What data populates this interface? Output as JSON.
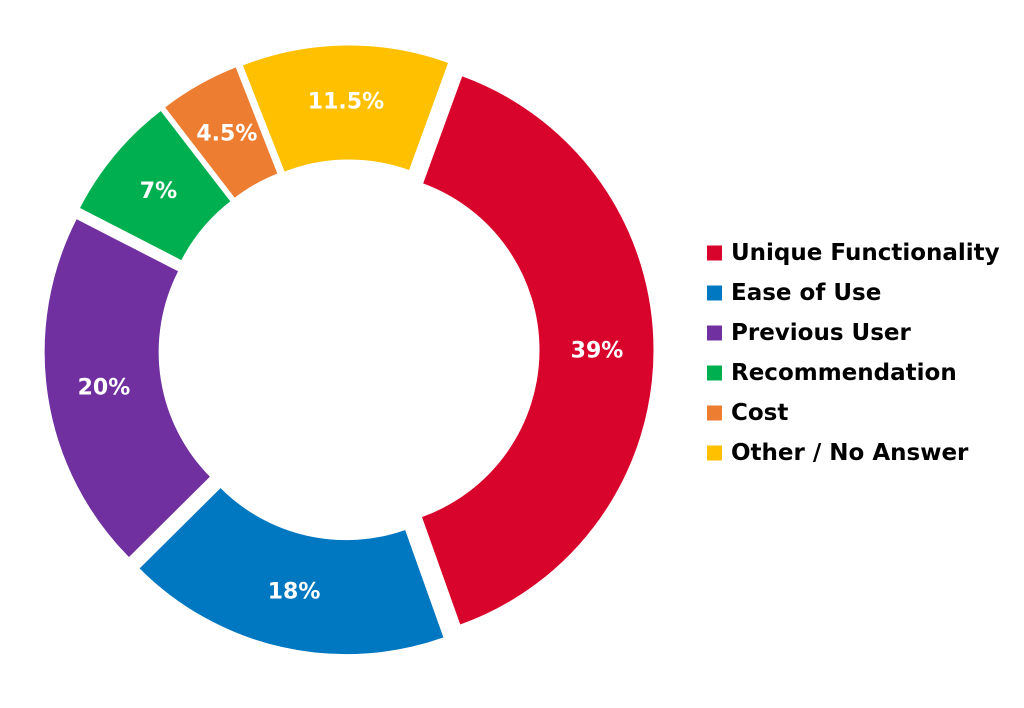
{
  "chart_data": {
    "type": "pie",
    "variant": "donut",
    "title": "",
    "categories": [
      "Unique Functionality",
      "Ease of Use",
      "Previous User",
      "Recommendation",
      "Cost",
      "Other / No Answer"
    ],
    "values": [
      39,
      18,
      20,
      7,
      4.5,
      11.5
    ],
    "labels": [
      "39%",
      "18%",
      "20%",
      "7%",
      "4.5%",
      "11.5%"
    ],
    "colors": [
      "#d9042b",
      "#0077c1",
      "#7030a0",
      "#00b050",
      "#ed7d31",
      "#ffc000"
    ],
    "start_angle_deg": 20,
    "direction": "clockwise",
    "legend_placement": "right",
    "exploded": true
  }
}
